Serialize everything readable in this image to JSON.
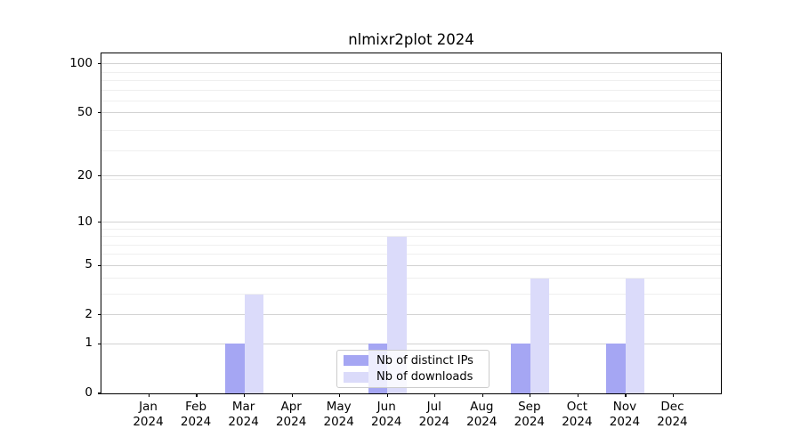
{
  "title": "nlmixr2plot 2024",
  "chart_data": {
    "type": "bar",
    "title": "nlmixr2plot 2024",
    "categories": [
      "Jan",
      "Feb",
      "Mar",
      "Apr",
      "May",
      "Jun",
      "Jul",
      "Aug",
      "Sep",
      "Oct",
      "Nov",
      "Dec"
    ],
    "x_year": "2024",
    "series": [
      {
        "name": "Nb of distinct IPs",
        "color": "#a5a6f3",
        "values": [
          0,
          0,
          1,
          0,
          0,
          1,
          0,
          0,
          1,
          0,
          1,
          0
        ]
      },
      {
        "name": "Nb of downloads",
        "color": "#dbdbfa",
        "values": [
          0,
          0,
          3,
          0,
          0,
          8,
          0,
          0,
          4,
          0,
          4,
          0
        ]
      }
    ],
    "yscale": "log1p",
    "ylim": [
      0,
      116
    ],
    "y_major_ticks": [
      0,
      1,
      2,
      5,
      10,
      20,
      50,
      100
    ],
    "y_minor_gridlines": [
      3,
      4,
      6,
      7,
      8,
      9,
      19,
      29,
      39,
      59,
      69,
      79,
      89
    ],
    "grid": "horizontal-major-and-minor",
    "legend_position": "lower-center",
    "colors": {
      "major_grid": "#d2d2d2",
      "minor_grid": "#efefef",
      "axis": "#000000",
      "background": "#ffffff"
    }
  }
}
